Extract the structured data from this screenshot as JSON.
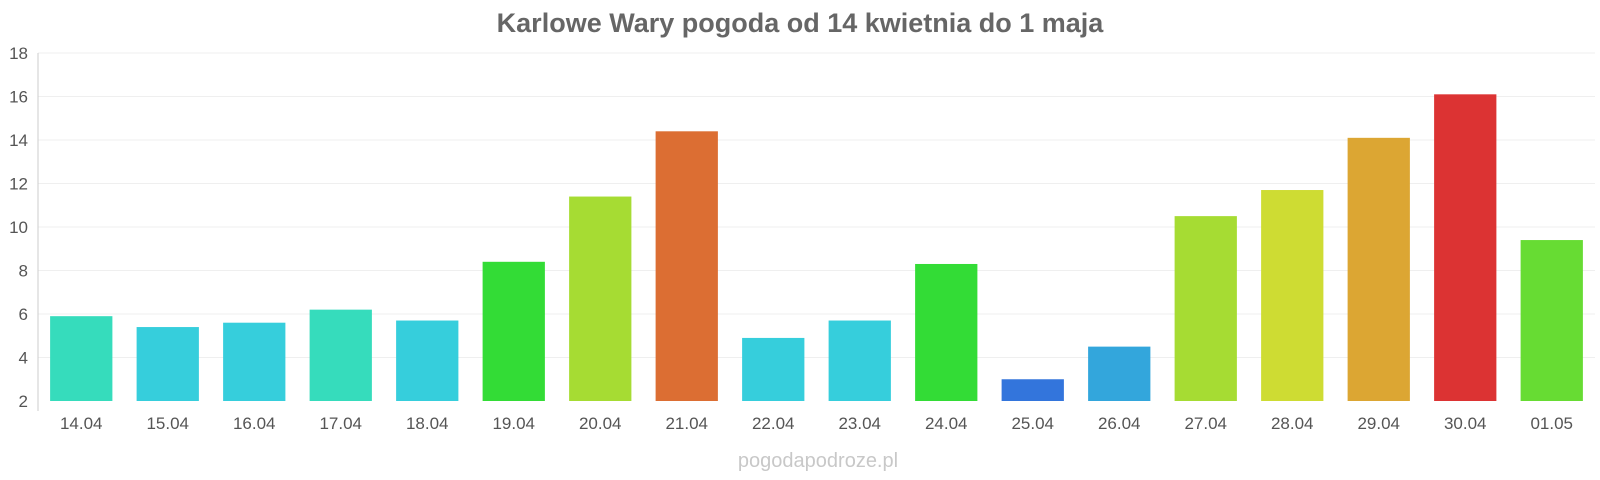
{
  "chart_data": {
    "type": "bar",
    "title": "Karlowe Wary pogoda od 14 kwietnia do 1 maja",
    "categories": [
      "14.04",
      "15.04",
      "16.04",
      "17.04",
      "18.04",
      "19.04",
      "20.04",
      "21.04",
      "22.04",
      "23.04",
      "24.04",
      "25.04",
      "26.04",
      "27.04",
      "28.04",
      "29.04",
      "30.04",
      "01.05"
    ],
    "values": [
      5.9,
      5.4,
      5.6,
      6.2,
      5.7,
      8.4,
      11.4,
      14.4,
      4.9,
      5.7,
      8.3,
      3.0,
      4.5,
      10.5,
      11.7,
      14.1,
      16.1,
      9.4
    ],
    "colors": [
      "#36dcbc",
      "#36cedc",
      "#36cedc",
      "#36dcbc",
      "#36cedc",
      "#33dc36",
      "#a6dc33",
      "#dc6e33",
      "#36cedc",
      "#36cedc",
      "#33dc36",
      "#3375dc",
      "#33a6dc",
      "#a6dc33",
      "#cedc33",
      "#dca633",
      "#dc3333",
      "#67dc33"
    ],
    "xlabel": "",
    "ylabel": "",
    "ylim": [
      2,
      18
    ],
    "yticks": [
      "2",
      "4",
      "6",
      "8",
      "10",
      "12",
      "14",
      "16",
      "18"
    ],
    "grid": true,
    "watermark": "pogodapodroze.pl"
  }
}
